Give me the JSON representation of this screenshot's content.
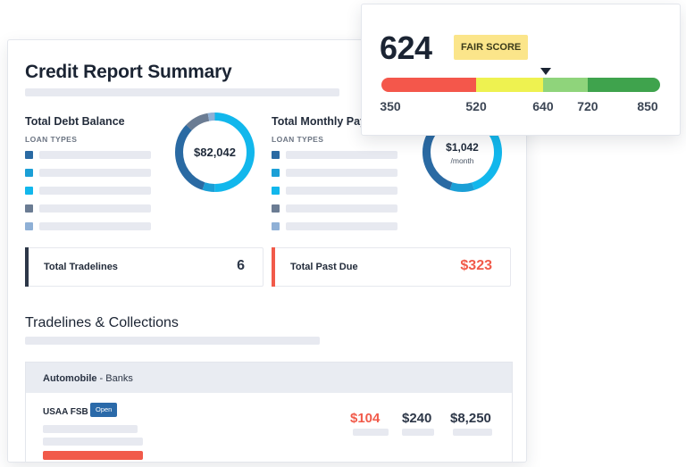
{
  "summary": {
    "title": "Credit Report Summary",
    "debt": {
      "label": "Total Debt Balance",
      "loan_types_label": "LOAN TYPES",
      "donut_value": "$82,042",
      "loan_type_colors": [
        "#2a6aa3",
        "#1b9fd6",
        "#12b7ec",
        "#6b7c93",
        "#8fb0d6"
      ],
      "donut_segments": [
        {
          "fraction": 0.5,
          "color": "#12b7ec"
        },
        {
          "fraction": 0.05,
          "color": "#1b9fd6"
        },
        {
          "fraction": 0.32,
          "color": "#2a6aa3"
        },
        {
          "fraction": 0.1,
          "color": "#6b7c93"
        },
        {
          "fraction": 0.03,
          "color": "#8fb0d6"
        }
      ]
    },
    "monthly": {
      "label": "Total Monthly Pay",
      "loan_types_label": "LOAN TYPES",
      "donut_value": "$1,042",
      "donut_sub": "/month",
      "loan_type_colors": [
        "#2a6aa3",
        "#1b9fd6",
        "#12b7ec",
        "#6b7c93",
        "#8fb0d6"
      ],
      "donut_segments": [
        {
          "fraction": 0.45,
          "color": "#12b7ec"
        },
        {
          "fraction": 0.1,
          "color": "#1b9fd6"
        },
        {
          "fraction": 0.45,
          "color": "#2a6aa3"
        }
      ]
    },
    "tradelines": {
      "label": "Total Tradelines",
      "value": "6",
      "accent": "#2d3748"
    },
    "past_due": {
      "label": "Total Past Due",
      "value": "$323",
      "accent": "#f15a4a"
    }
  },
  "tradelines_section": {
    "title": "Tradelines & Collections",
    "category": "Automobile",
    "category_sub": " - Banks",
    "creditor": "USAA FSB",
    "status_badge": "Open",
    "amounts": [
      "$104",
      "$240",
      "$8,250"
    ]
  },
  "score": {
    "value": "624",
    "rating": "FAIR SCORE",
    "score_numeric": 624,
    "scale_min": 350,
    "scale_max": 850,
    "ticks": [
      "350",
      "520",
      "640",
      "720",
      "850"
    ],
    "tick_values": [
      350,
      520,
      640,
      720,
      850
    ],
    "bands": [
      {
        "from": 350,
        "to": 520,
        "color": "#f4574b"
      },
      {
        "from": 520,
        "to": 640,
        "color": "#eef250"
      },
      {
        "from": 640,
        "to": 720,
        "color": "#8fd47b"
      },
      {
        "from": 720,
        "to": 850,
        "color": "#3fa34d"
      }
    ]
  },
  "colors": {
    "red": "#f15a4a",
    "dark": "#1b2433",
    "badge_blue": "#2b6aa9",
    "fair_yellow": "#fbe58a"
  }
}
